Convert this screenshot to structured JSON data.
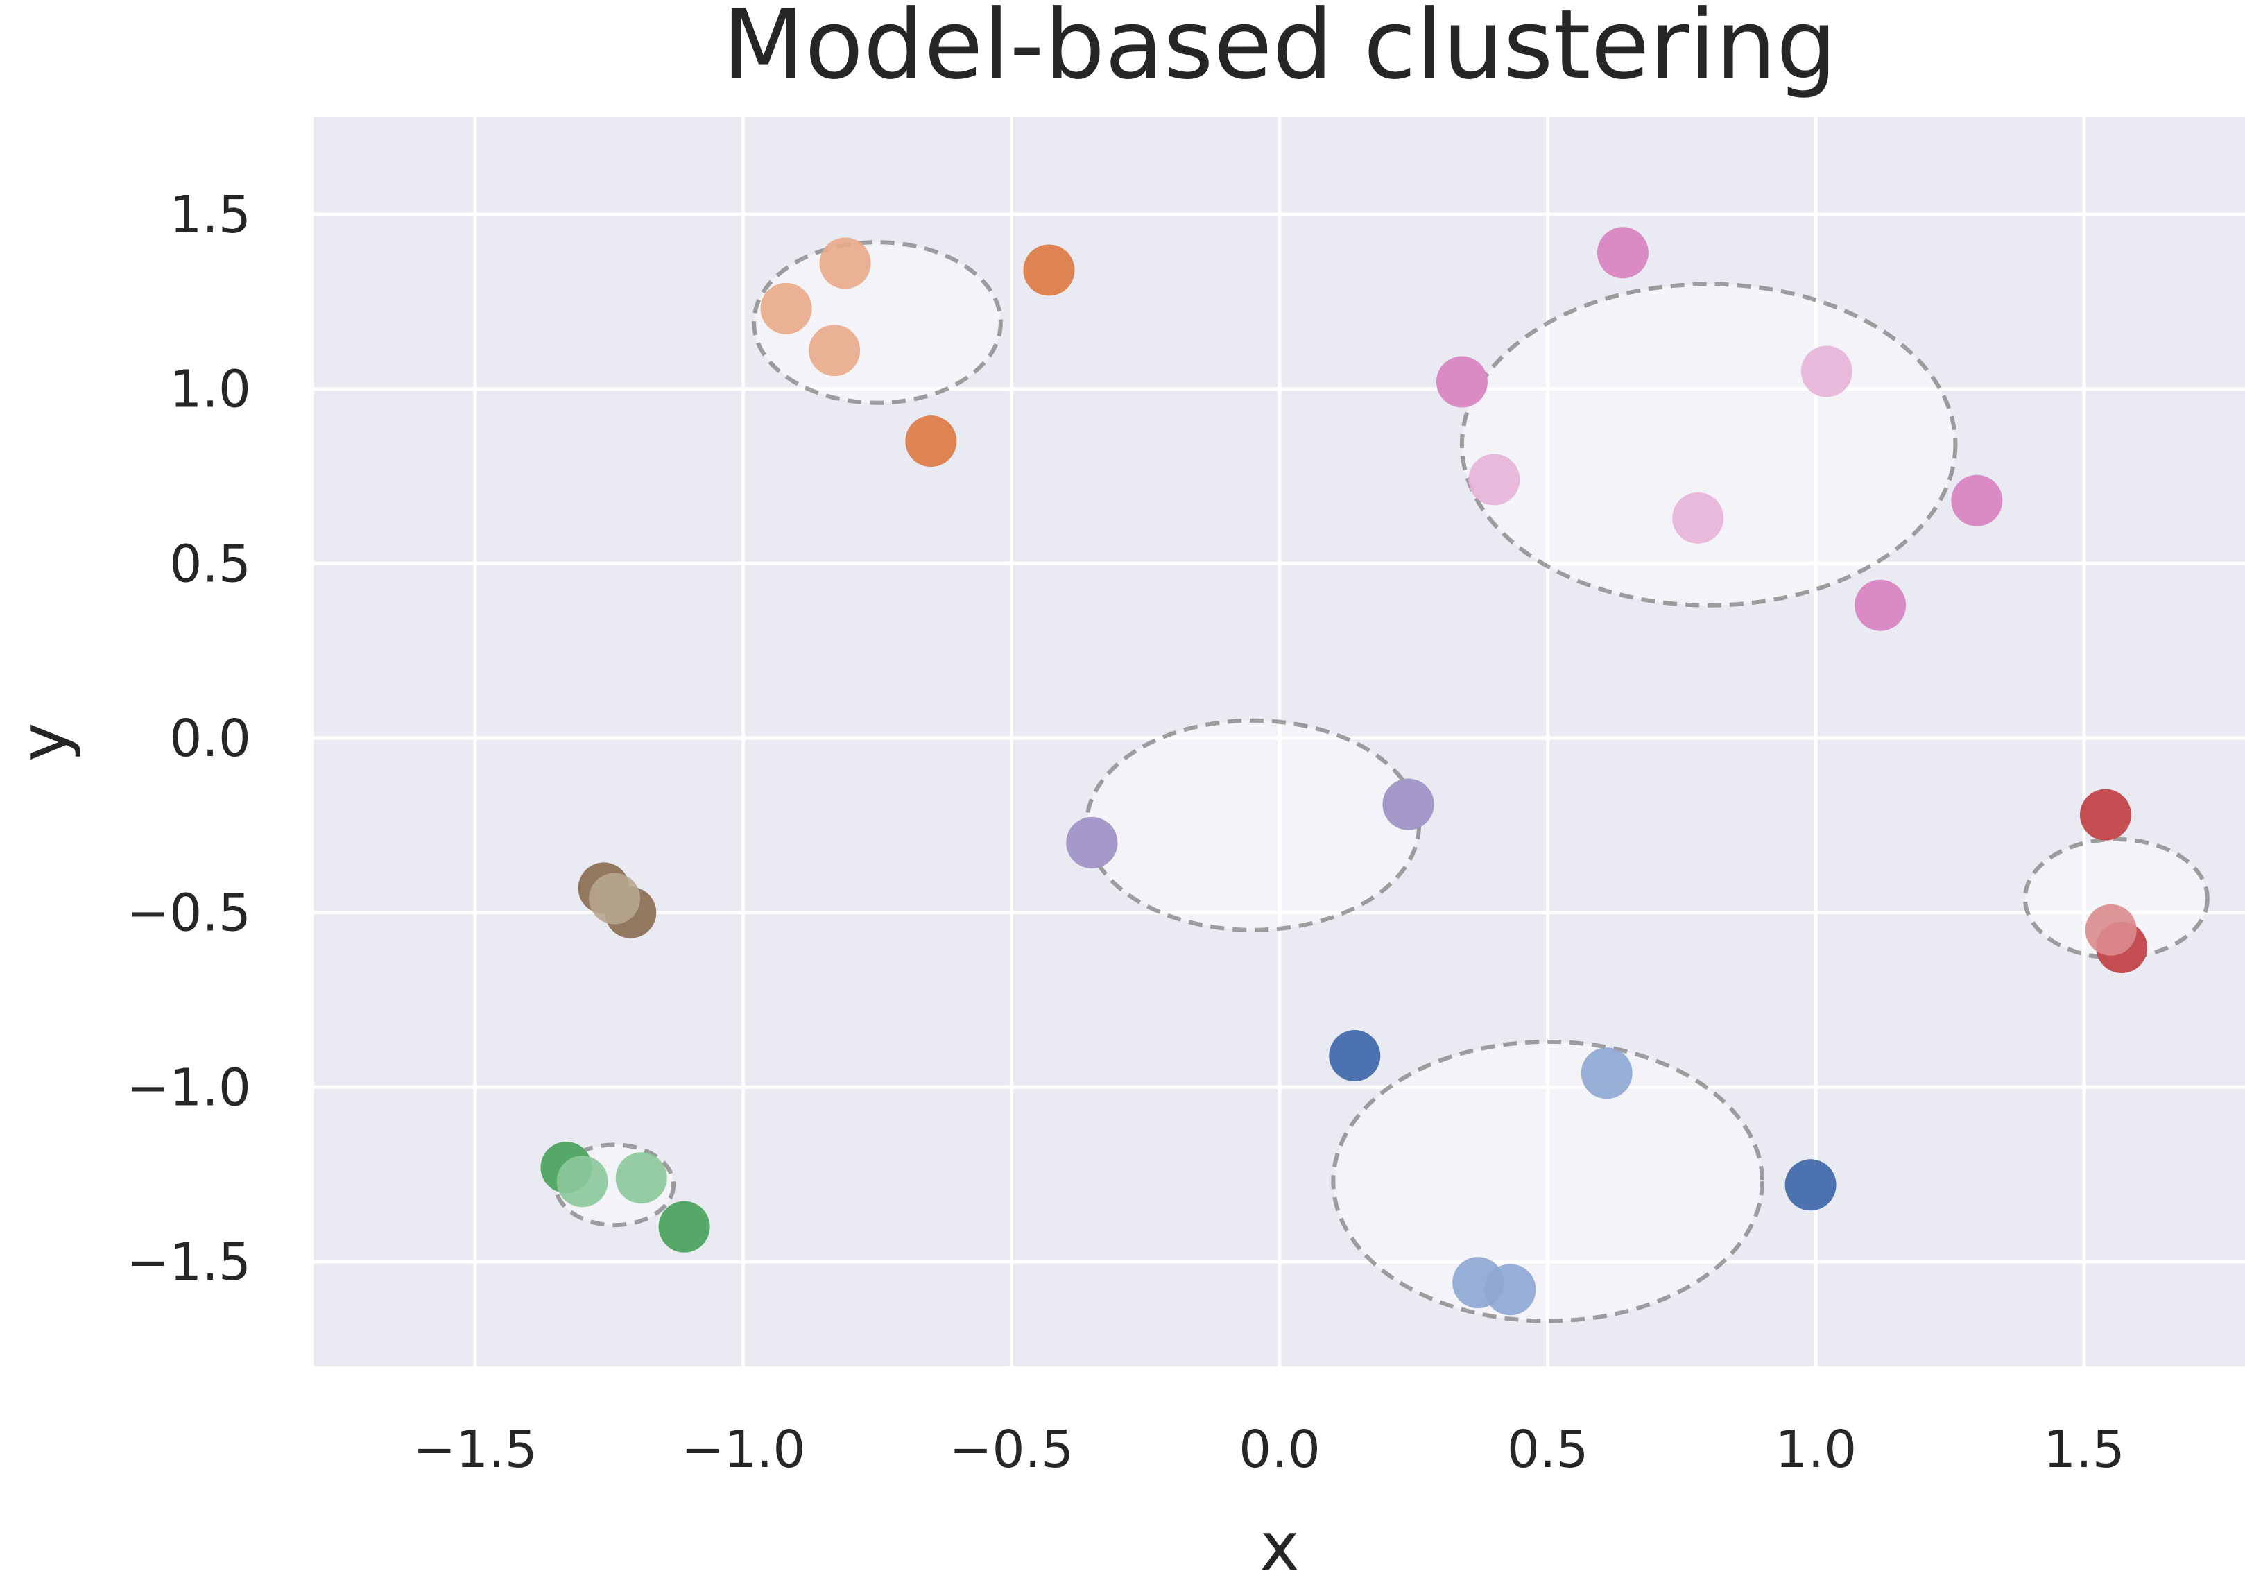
{
  "chart_data": {
    "type": "scatter",
    "title": "Model-based clustering",
    "xlabel": "x",
    "ylabel": "y",
    "xlim": [
      -1.8,
      1.8
    ],
    "ylim": [
      -1.8,
      1.78
    ],
    "xticks": [
      -1.5,
      -1.0,
      -0.5,
      0.0,
      0.5,
      1.0,
      1.5
    ],
    "xtick_labels": [
      "−1.5",
      "−1.0",
      "−0.5",
      "0.0",
      "0.5",
      "1.0",
      "1.5"
    ],
    "yticks": [
      1.5,
      1.0,
      0.5,
      0.0,
      -0.5,
      -1.0,
      -1.5
    ],
    "ytick_labels": [
      "1.5",
      "1.0",
      "0.5",
      "0.0",
      "−0.5",
      "−1.0",
      "−1.5"
    ],
    "grid": true,
    "background_color": "#eaeaf2",
    "clusters": [
      {
        "color": "#c44e52",
        "light_color": "#dc8b8c",
        "points": [
          [
            1.54,
            -0.22
          ],
          [
            1.57,
            -0.6
          ]
        ],
        "light_points": [
          [
            1.55,
            -0.55
          ]
        ],
        "ellipse": {
          "cx": 1.56,
          "cy": -0.46,
          "rx": 0.17,
          "ry": 0.17
        }
      },
      {
        "color": "#dd8452",
        "light_color": "#eaaa88",
        "points": [
          [
            -0.43,
            1.34
          ],
          [
            -0.65,
            0.85
          ]
        ],
        "light_points": [
          [
            -0.81,
            1.36
          ],
          [
            -0.92,
            1.23
          ],
          [
            -0.83,
            1.11
          ]
        ],
        "ellipse": {
          "cx": -0.75,
          "cy": 1.19,
          "rx": 0.23,
          "ry": 0.23
        }
      },
      {
        "color": "#da8bc3",
        "light_color": "#e8b3d8",
        "points": [
          [
            0.64,
            1.39
          ],
          [
            0.34,
            1.02
          ],
          [
            1.3,
            0.68
          ],
          [
            1.12,
            0.38
          ]
        ],
        "light_points": [
          [
            1.02,
            1.05
          ],
          [
            0.4,
            0.74
          ],
          [
            0.78,
            0.63
          ]
        ],
        "ellipse": {
          "cx": 0.8,
          "cy": 0.84,
          "rx": 0.46,
          "ry": 0.46
        }
      },
      {
        "color": "#8172b3",
        "light_color": "#a89dcb",
        "points": [
          [
            0.24,
            -0.19
          ],
          [
            -0.35,
            -0.3
          ]
        ],
        "light_points": [
          [
            0.24,
            -0.19
          ],
          [
            -0.35,
            -0.3
          ]
        ],
        "ellipse": {
          "cx": -0.05,
          "cy": -0.25,
          "rx": 0.31,
          "ry": 0.3
        }
      },
      {
        "color": "#937860",
        "light_color": "#b8a58f",
        "points": [
          [
            -1.26,
            -0.43
          ],
          [
            -1.21,
            -0.5
          ]
        ],
        "light_points": [
          [
            -1.24,
            -0.46
          ]
        ],
        "ellipse": {
          "cx": -1.24,
          "cy": -0.46,
          "rx": 0.035,
          "ry": 0.035
        }
      },
      {
        "color": "#55a868",
        "light_color": "#8cc89a",
        "points": [
          [
            -1.33,
            -1.23
          ],
          [
            -1.11,
            -1.4
          ]
        ],
        "light_points": [
          [
            -1.3,
            -1.27
          ],
          [
            -1.19,
            -1.26
          ]
        ],
        "ellipse": {
          "cx": -1.24,
          "cy": -1.28,
          "rx": 0.11,
          "ry": 0.115
        }
      },
      {
        "color": "#4c72b0",
        "light_color": "#8da7d2",
        "points": [
          [
            0.14,
            -0.91
          ],
          [
            0.99,
            -1.28
          ]
        ],
        "light_points": [
          [
            0.61,
            -0.96
          ],
          [
            0.37,
            -1.56
          ],
          [
            0.43,
            -1.58
          ]
        ],
        "ellipse": {
          "cx": 0.5,
          "cy": -1.27,
          "rx": 0.4,
          "ry": 0.4
        }
      }
    ]
  }
}
